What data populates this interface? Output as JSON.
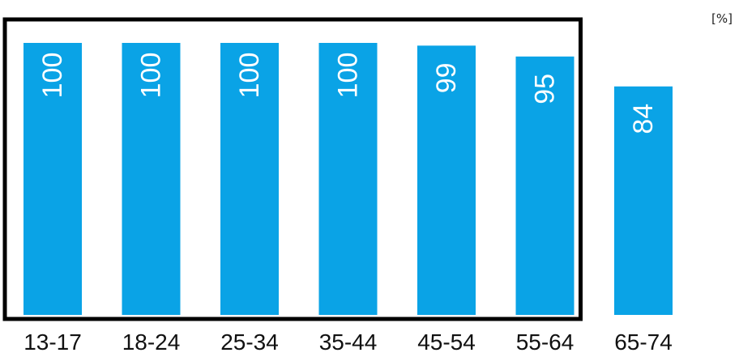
{
  "chart_data": {
    "type": "bar",
    "unit_label": "[%]",
    "categories": [
      "13-17",
      "18-24",
      "25-34",
      "35-44",
      "45-54",
      "55-64",
      "65-74"
    ],
    "values": [
      100,
      100,
      100,
      100,
      99,
      95,
      84
    ],
    "value_labels": [
      "100",
      "100",
      "100",
      "100",
      "99",
      "95",
      "84"
    ],
    "ylim": [
      0,
      100
    ],
    "highlight_box_categories": [
      "13-17",
      "18-24",
      "25-34",
      "35-44",
      "45-54",
      "55-64"
    ],
    "colors": {
      "bar": "#0aa3e6",
      "box": "#000000",
      "value_text": "#ffffff"
    },
    "grid": false,
    "legend": "none"
  }
}
